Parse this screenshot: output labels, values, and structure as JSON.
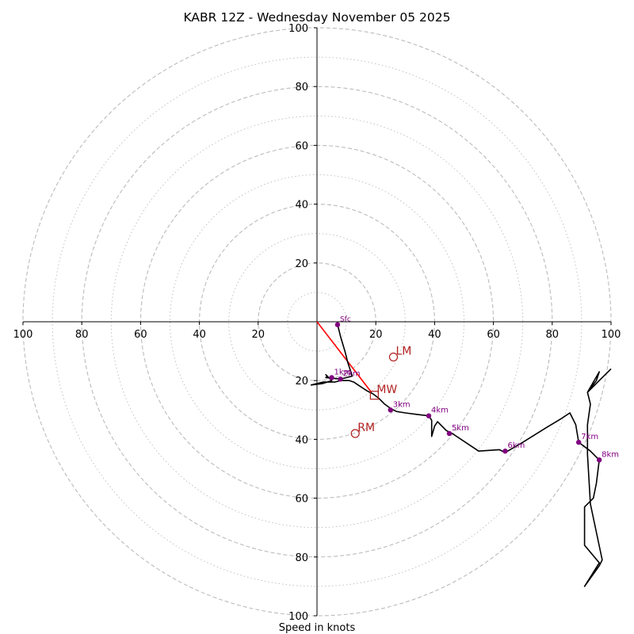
{
  "chart_data": {
    "type": "hodograph",
    "title": "KABR 12Z - Wednesday November 05 2025",
    "xlabel": "Speed in knots",
    "xlim": [
      -100,
      100
    ],
    "ylim": [
      -100,
      100
    ],
    "ticks": [
      100,
      80,
      60,
      40,
      20
    ],
    "x_tick_labels": [
      "100",
      "80",
      "60",
      "40",
      "20",
      "20",
      "40",
      "60",
      "80",
      "100"
    ],
    "y_tick_labels": [
      "100",
      "80",
      "60",
      "40",
      "20",
      "20",
      "40",
      "60",
      "80",
      "100"
    ],
    "rings_major": [
      20,
      40,
      60,
      80,
      100
    ],
    "rings_minor": [
      10,
      30,
      50,
      70,
      90
    ],
    "colors": {
      "trace": "#000000",
      "height_marker": "#800080",
      "storm_marker": "#b22222",
      "shear_vector": "#ff0000",
      "ring": "#bbbbbb"
    },
    "trace": [
      [
        7,
        -1
      ],
      [
        8,
        -5
      ],
      [
        9.5,
        -10
      ],
      [
        10.5,
        -14
      ],
      [
        11.5,
        -17
      ],
      [
        12,
        -18.5
      ],
      [
        10,
        -19
      ],
      [
        8,
        -19.5
      ],
      [
        5,
        -19.2
      ],
      [
        3,
        -19
      ],
      [
        3.5,
        -18.5
      ],
      [
        3,
        -18
      ],
      [
        5,
        -20
      ],
      [
        2,
        -21
      ],
      [
        -2,
        -21.5
      ],
      [
        2,
        -20.5
      ],
      [
        6,
        -20.5
      ],
      [
        8,
        -20
      ],
      [
        11,
        -20
      ],
      [
        12.5,
        -20.5
      ],
      [
        14,
        -21.5
      ],
      [
        17,
        -23.5
      ],
      [
        19,
        -24.5
      ],
      [
        21,
        -26
      ],
      [
        23,
        -28
      ],
      [
        25,
        -29.5
      ],
      [
        27,
        -30.5
      ],
      [
        30,
        -31
      ],
      [
        34,
        -31.5
      ],
      [
        38,
        -32
      ],
      [
        39,
        -33.5
      ],
      [
        39,
        -37
      ],
      [
        39,
        -39
      ],
      [
        40,
        -35.5
      ],
      [
        41,
        -34
      ],
      [
        44,
        -37
      ],
      [
        46,
        -38
      ],
      [
        52,
        -42
      ],
      [
        55,
        -44
      ],
      [
        62,
        -43.5
      ],
      [
        64,
        -44.5
      ],
      [
        70,
        -41
      ],
      [
        78,
        -36
      ],
      [
        83,
        -33
      ],
      [
        86,
        -31
      ],
      [
        88,
        -35
      ],
      [
        89,
        -41
      ],
      [
        93,
        -44
      ],
      [
        96,
        -47
      ],
      [
        95,
        -55
      ],
      [
        94,
        -60
      ],
      [
        91,
        -63
      ],
      [
        91,
        -76
      ],
      [
        96,
        -82
      ],
      [
        91,
        -90
      ],
      [
        96,
        -83
      ],
      [
        97,
        -81
      ],
      [
        93,
        -62
      ],
      [
        92,
        -45
      ],
      [
        92,
        -35
      ],
      [
        93,
        -28
      ],
      [
        92,
        -24
      ],
      [
        95,
        -20
      ],
      [
        96,
        -17
      ],
      [
        92,
        -24
      ],
      [
        100,
        -16
      ]
    ],
    "height_markers": [
      {
        "label": "Sfc",
        "u": 7,
        "v": -1
      },
      {
        "label": "1km",
        "u": 5,
        "v": -19
      },
      {
        "label": "2km",
        "u": 8,
        "v": -19.5
      },
      {
        "label": "3km",
        "u": 25,
        "v": -30
      },
      {
        "label": "4km",
        "u": 38,
        "v": -32
      },
      {
        "label": "5km",
        "u": 45,
        "v": -38
      },
      {
        "label": "6km",
        "u": 64,
        "v": -44
      },
      {
        "label": "7km",
        "u": 89,
        "v": -41
      },
      {
        "label": "8km",
        "u": 96,
        "v": -47
      }
    ],
    "storm_motions": [
      {
        "label": "LM",
        "u": 26,
        "v": -12,
        "shape": "circle"
      },
      {
        "label": "MW",
        "u": 19.5,
        "v": -25,
        "shape": "square"
      },
      {
        "label": "RM",
        "u": 13,
        "v": -38,
        "shape": "circle"
      }
    ],
    "shear_vector": {
      "u1": 0,
      "v1": 0,
      "u2": 18.5,
      "v2": -24
    }
  }
}
